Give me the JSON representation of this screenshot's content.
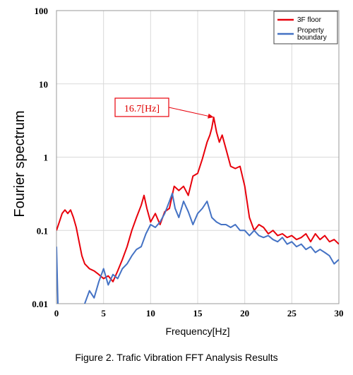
{
  "chart_data": {
    "type": "line",
    "title": "",
    "xlabel": "Frequency[Hz]",
    "ylabel": "Fourier spectrum",
    "xlim": [
      0,
      30
    ],
    "ylim": [
      0.01,
      100
    ],
    "yscale": "log",
    "x_ticks": [
      "0",
      "5",
      "10",
      "15",
      "20",
      "25",
      "30"
    ],
    "y_ticks": [
      "0.01",
      "0.1",
      "1",
      "10",
      "100"
    ],
    "grid": true,
    "legend": "top-right",
    "annotation": {
      "text": "16.7[Hz]",
      "x": 16.7,
      "y": 3.5
    },
    "caption": "Figure 2. Trafic Vibration FFT Analysis Results",
    "series": [
      {
        "name": "3F floor",
        "color": "#e8000b",
        "points": [
          [
            0,
            0.1
          ],
          [
            0.3,
            0.13
          ],
          [
            0.6,
            0.17
          ],
          [
            0.9,
            0.19
          ],
          [
            1.2,
            0.17
          ],
          [
            1.5,
            0.19
          ],
          [
            1.8,
            0.15
          ],
          [
            2.1,
            0.11
          ],
          [
            2.4,
            0.07
          ],
          [
            2.7,
            0.045
          ],
          [
            3.0,
            0.035
          ],
          [
            3.5,
            0.03
          ],
          [
            4.0,
            0.028
          ],
          [
            4.5,
            0.025
          ],
          [
            5.0,
            0.022
          ],
          [
            5.5,
            0.024
          ],
          [
            6.0,
            0.02
          ],
          [
            6.5,
            0.028
          ],
          [
            7.0,
            0.04
          ],
          [
            7.5,
            0.06
          ],
          [
            8.0,
            0.1
          ],
          [
            8.5,
            0.15
          ],
          [
            9.0,
            0.22
          ],
          [
            9.3,
            0.3
          ],
          [
            9.6,
            0.2
          ],
          [
            10.0,
            0.13
          ],
          [
            10.5,
            0.17
          ],
          [
            11.0,
            0.12
          ],
          [
            11.5,
            0.18
          ],
          [
            12.0,
            0.2
          ],
          [
            12.5,
            0.4
          ],
          [
            13.0,
            0.35
          ],
          [
            13.5,
            0.4
          ],
          [
            14.0,
            0.3
          ],
          [
            14.5,
            0.55
          ],
          [
            15.0,
            0.6
          ],
          [
            15.5,
            0.95
          ],
          [
            16.0,
            1.6
          ],
          [
            16.3,
            2.0
          ],
          [
            16.5,
            2.5
          ],
          [
            16.7,
            3.5
          ],
          [
            17.0,
            2.2
          ],
          [
            17.3,
            1.6
          ],
          [
            17.6,
            2.0
          ],
          [
            18.0,
            1.3
          ],
          [
            18.5,
            0.75
          ],
          [
            19.0,
            0.7
          ],
          [
            19.5,
            0.75
          ],
          [
            20.0,
            0.4
          ],
          [
            20.5,
            0.15
          ],
          [
            21.0,
            0.1
          ],
          [
            21.5,
            0.12
          ],
          [
            22.0,
            0.11
          ],
          [
            22.5,
            0.09
          ],
          [
            23.0,
            0.1
          ],
          [
            23.5,
            0.085
          ],
          [
            24.0,
            0.09
          ],
          [
            24.5,
            0.08
          ],
          [
            25.0,
            0.085
          ],
          [
            25.5,
            0.075
          ],
          [
            26.0,
            0.08
          ],
          [
            26.5,
            0.09
          ],
          [
            27.0,
            0.07
          ],
          [
            27.5,
            0.09
          ],
          [
            28.0,
            0.075
          ],
          [
            28.5,
            0.085
          ],
          [
            29.0,
            0.07
          ],
          [
            29.5,
            0.075
          ],
          [
            30.0,
            0.065
          ]
        ]
      },
      {
        "name": "Property\nboundary",
        "color": "#4472c4",
        "points": [
          [
            0,
            0.06
          ],
          [
            0.15,
            0.01
          ],
          [
            0.5,
            0.0085
          ],
          [
            2.9,
            0.009
          ],
          [
            3.0,
            0.01
          ],
          [
            3.5,
            0.015
          ],
          [
            4.0,
            0.012
          ],
          [
            4.5,
            0.02
          ],
          [
            5.0,
            0.03
          ],
          [
            5.5,
            0.018
          ],
          [
            6.0,
            0.025
          ],
          [
            6.5,
            0.022
          ],
          [
            7.0,
            0.03
          ],
          [
            7.5,
            0.035
          ],
          [
            8.0,
            0.045
          ],
          [
            8.5,
            0.055
          ],
          [
            9.0,
            0.06
          ],
          [
            9.5,
            0.09
          ],
          [
            10.0,
            0.12
          ],
          [
            10.5,
            0.11
          ],
          [
            11.0,
            0.13
          ],
          [
            11.5,
            0.17
          ],
          [
            12.0,
            0.25
          ],
          [
            12.3,
            0.32
          ],
          [
            12.6,
            0.2
          ],
          [
            13.0,
            0.15
          ],
          [
            13.5,
            0.25
          ],
          [
            14.0,
            0.18
          ],
          [
            14.5,
            0.12
          ],
          [
            15.0,
            0.17
          ],
          [
            15.5,
            0.2
          ],
          [
            16.0,
            0.25
          ],
          [
            16.5,
            0.15
          ],
          [
            17.0,
            0.13
          ],
          [
            17.5,
            0.12
          ],
          [
            18.0,
            0.12
          ],
          [
            18.5,
            0.11
          ],
          [
            19.0,
            0.12
          ],
          [
            19.5,
            0.1
          ],
          [
            20.0,
            0.1
          ],
          [
            20.5,
            0.085
          ],
          [
            21.0,
            0.1
          ],
          [
            21.5,
            0.085
          ],
          [
            22.0,
            0.08
          ],
          [
            22.5,
            0.085
          ],
          [
            23.0,
            0.075
          ],
          [
            23.5,
            0.07
          ],
          [
            24.0,
            0.08
          ],
          [
            24.5,
            0.065
          ],
          [
            25.0,
            0.07
          ],
          [
            25.5,
            0.06
          ],
          [
            26.0,
            0.065
          ],
          [
            26.5,
            0.055
          ],
          [
            27.0,
            0.06
          ],
          [
            27.5,
            0.05
          ],
          [
            28.0,
            0.055
          ],
          [
            28.5,
            0.05
          ],
          [
            29.0,
            0.045
          ],
          [
            29.5,
            0.035
          ],
          [
            30.0,
            0.04
          ]
        ]
      }
    ]
  }
}
